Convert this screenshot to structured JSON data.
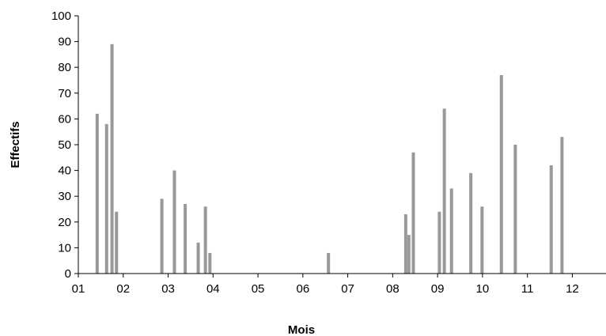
{
  "chart_data": {
    "type": "bar",
    "xlabel": "Mois",
    "ylabel": "Effectifs",
    "ylim": [
      0,
      100
    ],
    "yticks": [
      0,
      10,
      20,
      30,
      40,
      50,
      60,
      70,
      80,
      90,
      100
    ],
    "xlim": [
      1,
      12.75
    ],
    "xticks": [
      {
        "value": 1,
        "label": "01"
      },
      {
        "value": 2,
        "label": "02"
      },
      {
        "value": 3,
        "label": "03"
      },
      {
        "value": 4,
        "label": "04"
      },
      {
        "value": 5,
        "label": "05"
      },
      {
        "value": 6,
        "label": "06"
      },
      {
        "value": 7,
        "label": "07"
      },
      {
        "value": 8,
        "label": "08"
      },
      {
        "value": 9,
        "label": "09"
      },
      {
        "value": 10,
        "label": "10"
      },
      {
        "value": 11,
        "label": "11"
      },
      {
        "value": 12,
        "label": "12"
      }
    ],
    "grid": false,
    "bar_color": "#999999",
    "points": [
      {
        "x": 1.42,
        "y": 62
      },
      {
        "x": 1.63,
        "y": 58
      },
      {
        "x": 1.75,
        "y": 89
      },
      {
        "x": 1.85,
        "y": 24
      },
      {
        "x": 2.86,
        "y": 29
      },
      {
        "x": 3.14,
        "y": 40
      },
      {
        "x": 3.38,
        "y": 27
      },
      {
        "x": 3.67,
        "y": 12
      },
      {
        "x": 3.83,
        "y": 26
      },
      {
        "x": 3.93,
        "y": 8
      },
      {
        "x": 6.57,
        "y": 8
      },
      {
        "x": 8.29,
        "y": 23
      },
      {
        "x": 8.36,
        "y": 15
      },
      {
        "x": 8.46,
        "y": 47
      },
      {
        "x": 9.04,
        "y": 24
      },
      {
        "x": 9.15,
        "y": 64
      },
      {
        "x": 9.31,
        "y": 33
      },
      {
        "x": 9.74,
        "y": 39
      },
      {
        "x": 9.99,
        "y": 26
      },
      {
        "x": 10.42,
        "y": 77
      },
      {
        "x": 10.73,
        "y": 50
      },
      {
        "x": 11.53,
        "y": 42
      },
      {
        "x": 11.77,
        "y": 53
      }
    ]
  }
}
